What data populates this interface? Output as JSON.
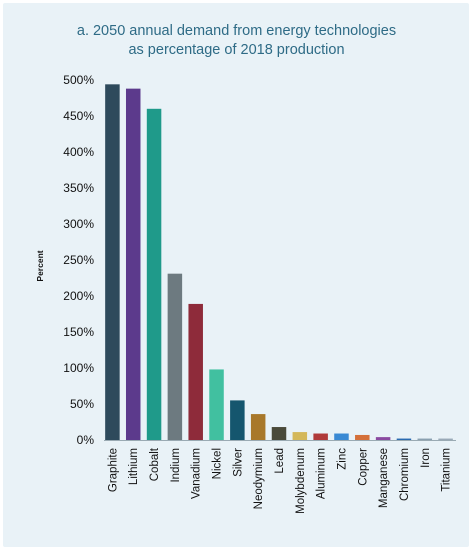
{
  "chart_data": {
    "type": "bar",
    "title_line1": "a. 2050 annual demand from energy technologies",
    "title_line2": "as percentage of 2018 production",
    "xlabel": "",
    "ylabel": "Percent",
    "ylim": [
      0,
      500
    ],
    "yticks": [
      0,
      50,
      100,
      150,
      200,
      250,
      300,
      350,
      400,
      450,
      500
    ],
    "ytick_labels": [
      "0%",
      "50%",
      "100%",
      "150%",
      "200%",
      "250%",
      "300%",
      "350%",
      "400%",
      "450%",
      "500%"
    ],
    "grid": false,
    "legend": "none",
    "categories": [
      "Graphite",
      "Lithium",
      "Cobalt",
      "Indium",
      "Vanadium",
      "Nickel",
      "Silver",
      "Neodymium",
      "Lead",
      "Molybdenum",
      "Aluminum",
      "Zinc",
      "Copper",
      "Manganese",
      "Chromium",
      "Iron",
      "Titanium"
    ],
    "values": [
      494,
      488,
      460,
      231,
      189,
      98,
      55,
      36,
      18,
      11,
      9,
      9,
      7,
      4,
      2,
      2,
      2
    ],
    "colors": [
      "#2e4a5c",
      "#5c3a8c",
      "#1f9a8a",
      "#6d7a80",
      "#8e2b3a",
      "#41c0a0",
      "#15566e",
      "#a8782a",
      "#4a4a3a",
      "#d4b85a",
      "#b03a3a",
      "#3a8ad4",
      "#d4703a",
      "#8a4aa0",
      "#2a6ab0",
      "#8aa0b0",
      "#9aaab8"
    ]
  }
}
